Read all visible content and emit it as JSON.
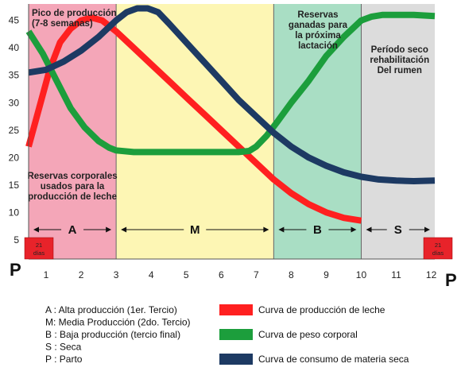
{
  "chart_data": {
    "type": "line",
    "y_ticks": [
      5,
      10,
      15,
      20,
      25,
      30,
      35,
      40,
      45
    ],
    "x_ticks": [
      1,
      2,
      3,
      4,
      5,
      6,
      7,
      8,
      9,
      10,
      11,
      12
    ],
    "xlim": [
      0.5,
      12.1
    ],
    "ylim": [
      1.5,
      48
    ],
    "grid": false,
    "regions": [
      {
        "from": 0.5,
        "to": 3,
        "color": "#f4a6b8",
        "letter": "A",
        "label_top": [
          "Pico de producción",
          "(7-8 semanas)"
        ],
        "label_bottom": [
          "Reservas corporales",
          "usados para la",
          "producción de leche"
        ]
      },
      {
        "from": 3,
        "to": 7.5,
        "color": "#fdf6b4",
        "letter": "M"
      },
      {
        "from": 7.5,
        "to": 10,
        "color": "#a9dec4",
        "letter": "B",
        "label_top": [
          "Reservas",
          "ganadas para",
          "la próxima",
          "lactación"
        ]
      },
      {
        "from": 10,
        "to": 12.1,
        "color": "#dcdcdc",
        "letter": "S",
        "label_top": [
          "Período seco",
          "rehabilitación",
          "Del rumen"
        ]
      }
    ],
    "markers": {
      "left": {
        "value": "21",
        "unit": "días",
        "letter": "P"
      },
      "right": {
        "value": "21",
        "unit": "días",
        "letter": "P"
      }
    },
    "series": [
      {
        "key": "leche",
        "color": "#ff2020",
        "x": [
          0.5,
          0.8,
          1.1,
          1.4,
          1.7,
          2.0,
          2.3,
          2.6,
          3.0,
          3.5,
          4.0,
          4.5,
          5.0,
          5.5,
          6.0,
          6.5,
          7.0,
          7.5,
          8.0,
          8.5,
          9.0,
          9.5,
          10.0
        ],
        "y": [
          22,
          29,
          36,
          41,
          43.5,
          45,
          45.5,
          45,
          43,
          40,
          37,
          34,
          31,
          28,
          25,
          22,
          19,
          16,
          13.5,
          11.5,
          10,
          9,
          8.5
        ]
      },
      {
        "key": "peso",
        "color": "#1c9e3c",
        "x": [
          0.5,
          0.9,
          1.3,
          1.7,
          2.1,
          2.5,
          2.8,
          3.0,
          3.5,
          4.0,
          4.5,
          5.0,
          5.5,
          6.0,
          6.5,
          6.8,
          7.0,
          7.3,
          7.6,
          8.0,
          8.5,
          9.0,
          9.5,
          10.0,
          10.3,
          10.6,
          11.0,
          11.5,
          12.1
        ],
        "y": [
          43,
          39,
          34,
          29,
          25.5,
          23,
          21.8,
          21.3,
          21,
          21,
          21,
          21,
          21,
          21,
          21,
          21.2,
          22,
          24,
          26.5,
          30,
          34,
          38.5,
          42,
          45,
          45.7,
          46,
          46,
          46,
          45.8
        ]
      },
      {
        "key": "consumo",
        "color": "#1d3a63",
        "x": [
          0.5,
          1.0,
          1.5,
          2.0,
          2.5,
          3.0,
          3.3,
          3.6,
          3.9,
          4.2,
          4.5,
          5.0,
          5.5,
          6.0,
          6.5,
          7.0,
          7.5,
          8.0,
          8.5,
          9.0,
          9.5,
          10.0,
          10.5,
          11.0,
          11.5,
          12.1
        ],
        "y": [
          35.5,
          36,
          37.5,
          39.5,
          42,
          45,
          46.5,
          47.2,
          47.2,
          46.5,
          44.5,
          41,
          37.5,
          34,
          30.5,
          27.5,
          24.5,
          22,
          20,
          18.5,
          17.3,
          16.5,
          16,
          15.8,
          15.7,
          15.8
        ]
      }
    ]
  },
  "legend": {
    "definitions": [
      "A : Alta producción (1er. Tercio)",
      "M: Media Producción (2do. Tercio)",
      "B : Baja producción (tercio final)",
      "S : Seca",
      "P : Parto"
    ],
    "curves": [
      {
        "label": "Curva de producción de leche",
        "color": "#ff2020"
      },
      {
        "label": "Curva de peso corporal",
        "color": "#1c9e3c"
      },
      {
        "label": "Curva de consumo de materia seca",
        "color": "#1d3a63"
      }
    ]
  }
}
